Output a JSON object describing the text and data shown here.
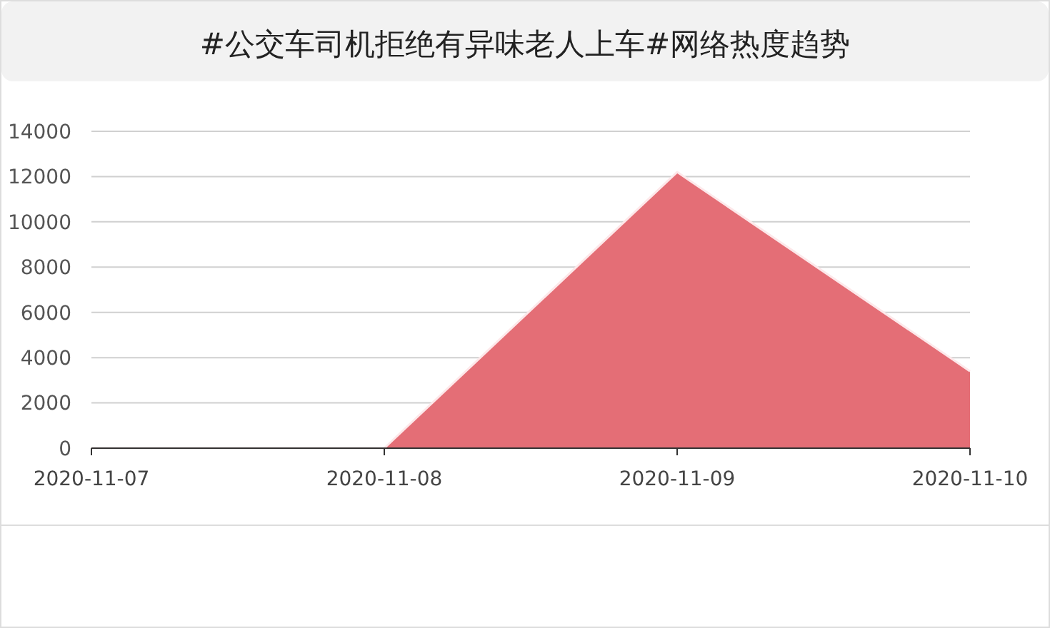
{
  "chart_data": {
    "type": "area",
    "title": "#公交车司机拒绝有异味老人上车#网络热度趋势",
    "categories": [
      "2020-11-07",
      "2020-11-08",
      "2020-11-09",
      "2020-11-10"
    ],
    "series": [
      {
        "color": "#e46e76",
        "values": [
          0,
          0,
          12200,
          3400
        ]
      }
    ],
    "ylim": [
      0,
      14000
    ],
    "yticks": [
      0,
      2000,
      4000,
      6000,
      8000,
      10000,
      12000,
      14000
    ],
    "grid": "y"
  }
}
